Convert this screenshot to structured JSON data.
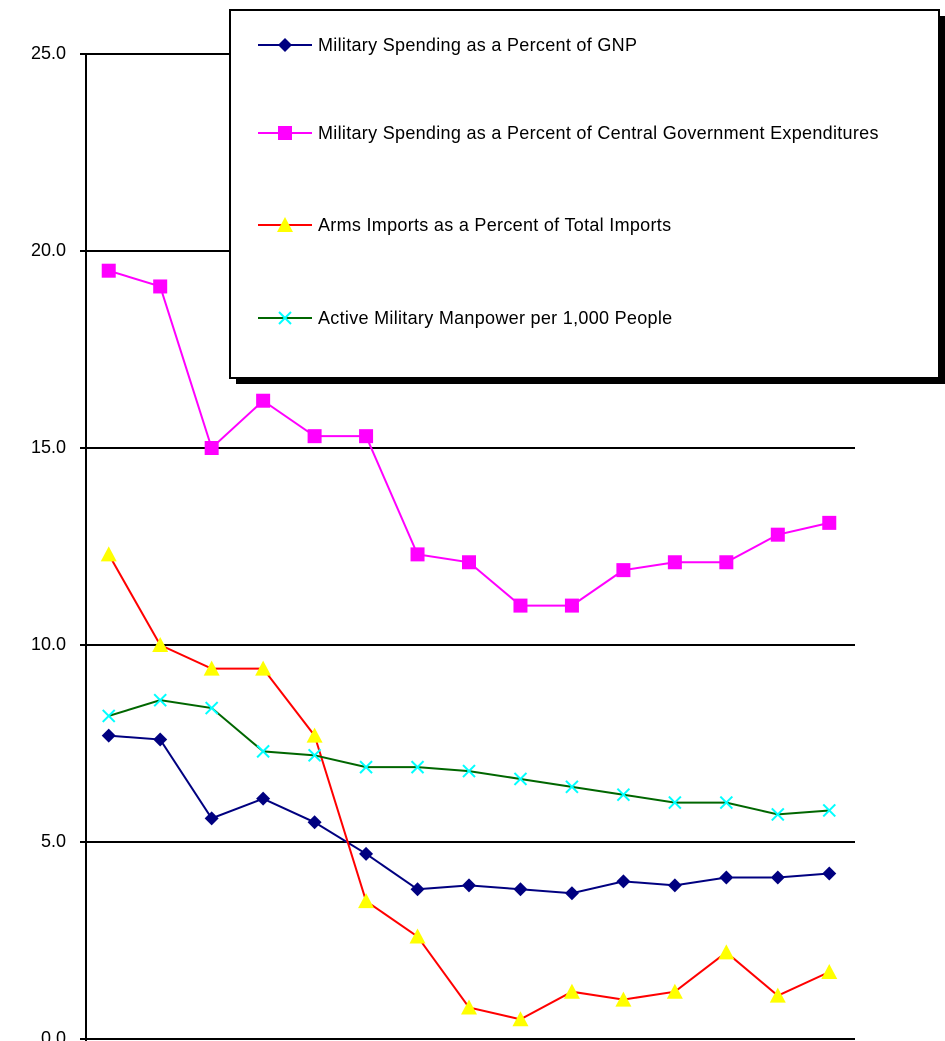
{
  "chart_data": {
    "type": "line",
    "categories": [
      null,
      null,
      null,
      null,
      null,
      null,
      null,
      null,
      null,
      null,
      null,
      null,
      null,
      null,
      null
    ],
    "series": [
      {
        "name": "Military Spending as a Percent of GNP",
        "color": "#000080",
        "marker": "diamond",
        "marker_color": "#000080",
        "values": [
          7.7,
          7.6,
          5.6,
          6.1,
          5.5,
          4.7,
          3.8,
          3.9,
          3.8,
          3.7,
          4.0,
          3.9,
          4.1,
          4.1,
          4.2
        ]
      },
      {
        "name": "Military Spending as a Percent of Central Government Expenditures",
        "color": "#ff00ff",
        "marker": "square",
        "marker_color": "#ff00ff",
        "values": [
          19.5,
          19.1,
          15.0,
          16.2,
          15.3,
          15.3,
          12.3,
          12.1,
          11.0,
          11.0,
          11.9,
          12.1,
          12.1,
          12.8,
          13.1
        ]
      },
      {
        "name": "Arms Imports as a Percent of Total Imports",
        "color": "#ff0000",
        "marker": "triangle",
        "marker_color": "#ffff00",
        "values": [
          12.3,
          10.0,
          9.4,
          9.4,
          7.7,
          3.5,
          2.6,
          0.8,
          0.5,
          1.2,
          1.0,
          1.2,
          2.2,
          1.1,
          1.7
        ]
      },
      {
        "name": "Active Military Manpower per 1,000 People",
        "color": "#006600",
        "marker": "x",
        "marker_color": "#00ffff",
        "values": [
          8.2,
          8.6,
          8.4,
          7.3,
          7.2,
          6.9,
          6.9,
          6.8,
          6.6,
          6.4,
          6.2,
          6.0,
          6.0,
          5.7,
          5.8
        ]
      }
    ],
    "ylim": [
      0,
      25
    ],
    "yticks": [
      {
        "value": 0,
        "label": "0.0"
      },
      {
        "value": 5,
        "label": "5.0"
      },
      {
        "value": 10,
        "label": "10.0"
      },
      {
        "value": 15,
        "label": "15.0"
      },
      {
        "value": 20,
        "label": "20.0"
      },
      {
        "value": 25,
        "label": "25.0"
      }
    ],
    "grid": true,
    "legend": "top-right"
  }
}
